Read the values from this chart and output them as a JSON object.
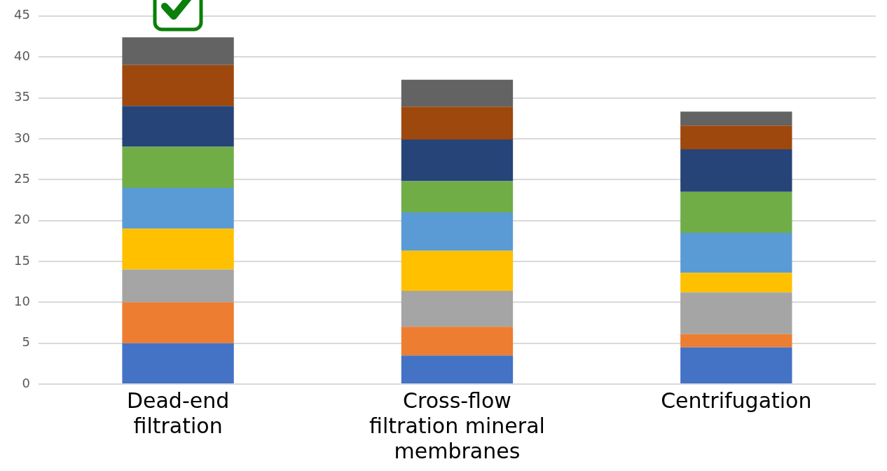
{
  "chart_data": {
    "type": "bar",
    "stacked": true,
    "categories": [
      "Dead-end filtration",
      "Cross-flow filtration mineral membranes",
      "Centrifugation"
    ],
    "series": [
      {
        "color": "#4472c4",
        "values": [
          5,
          3.5,
          4.5
        ]
      },
      {
        "color": "#ed7d31",
        "values": [
          5,
          3.5,
          1.6
        ]
      },
      {
        "color": "#a5a5a5",
        "values": [
          4,
          4.4,
          5.1
        ]
      },
      {
        "color": "#ffc000",
        "values": [
          5,
          4.9,
          2.4
        ]
      },
      {
        "color": "#5b9bd5",
        "values": [
          5,
          4.7,
          4.9
        ]
      },
      {
        "color": "#70ad47",
        "values": [
          5,
          3.8,
          5.0
        ]
      },
      {
        "color": "#264478",
        "values": [
          5,
          5.1,
          5.2
        ]
      },
      {
        "color": "#9e480e",
        "values": [
          5,
          4.0,
          2.9
        ]
      },
      {
        "color": "#636363",
        "values": [
          3.4,
          3.3,
          1.7
        ]
      }
    ],
    "ylim": [
      0,
      45
    ],
    "yticks": [
      0,
      5,
      10,
      15,
      20,
      25,
      30,
      35,
      40,
      45
    ],
    "grid": "y",
    "legend": false
  }
}
